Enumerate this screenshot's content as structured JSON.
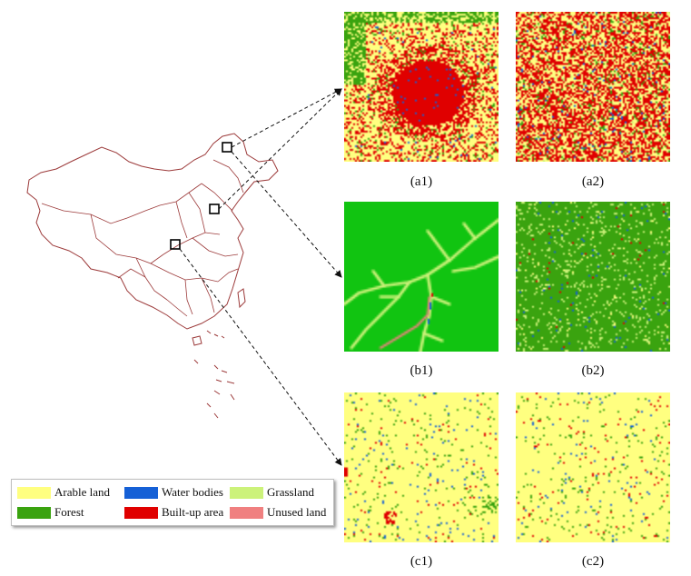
{
  "colors": {
    "arable": "#ffff80",
    "forest": "#3aa30f",
    "water": "#1560d6",
    "built": "#e00000",
    "grass": "#ccf27a",
    "unused": "#f08080",
    "green_bright": "#11c411",
    "boundary": "#9c3a3a"
  },
  "panels": [
    {
      "id": "a1",
      "label": "(a1)"
    },
    {
      "id": "a2",
      "label": "(a2)"
    },
    {
      "id": "b1",
      "label": "(b1)"
    },
    {
      "id": "b2",
      "label": "(b2)"
    },
    {
      "id": "c1",
      "label": "(c1)"
    },
    {
      "id": "c2",
      "label": "(c2)"
    }
  ],
  "legend": {
    "items": [
      {
        "label": "Arable land",
        "color_key": "arable"
      },
      {
        "label": "Water bodies",
        "color_key": "water"
      },
      {
        "label": "Grassland",
        "color_key": "grass"
      },
      {
        "label": "Forest",
        "color_key": "forest"
      },
      {
        "label": "Built-up area",
        "color_key": "built"
      },
      {
        "label": "Unused land",
        "color_key": "unused"
      }
    ]
  }
}
